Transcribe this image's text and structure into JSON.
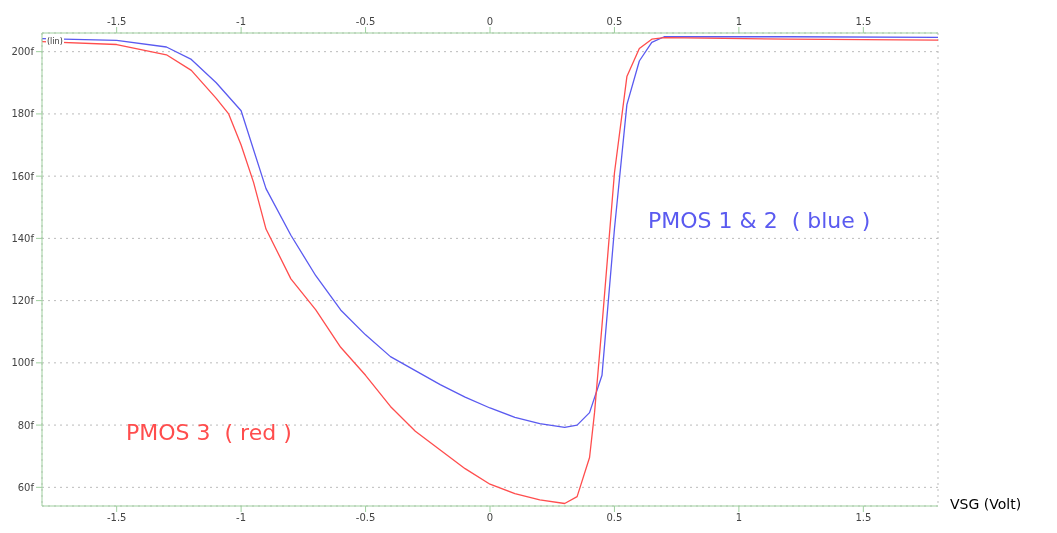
{
  "chart_data": {
    "type": "line",
    "xlabel": "VSG (Volt)",
    "annotations": [
      "(lin)"
    ],
    "xlim": [
      -1.8,
      1.8
    ],
    "xticks": [
      -1.5,
      -1,
      -0.5,
      0,
      0.5,
      1,
      1.5
    ],
    "x2lim": [
      -1.8,
      1.8
    ],
    "x2ticks": [
      -1.5,
      -1,
      -0.5,
      0,
      0.5,
      1,
      1.5
    ],
    "ylim": [
      54,
      206
    ],
    "yticks": [
      {
        "value": 60,
        "label": "60f"
      },
      {
        "value": 80,
        "label": "80f"
      },
      {
        "value": 100,
        "label": "100f"
      },
      {
        "value": 120,
        "label": "120f"
      },
      {
        "value": 140,
        "label": "140f"
      },
      {
        "value": 160,
        "label": "160f"
      },
      {
        "value": 180,
        "label": "180f"
      },
      {
        "value": 200,
        "label": "200f"
      }
    ],
    "grid": true,
    "legend": false,
    "marker": "none",
    "line_style": "solid",
    "series": [
      {
        "name": "PMOS 1 & 2  ( blue )",
        "color": "#5a5af0",
        "x": [
          -1.8,
          -1.5,
          -1.3,
          -1.2,
          -1.1,
          -1.0,
          -0.9,
          -0.8,
          -0.7,
          -0.6,
          -0.5,
          -0.4,
          -0.3,
          -0.2,
          -0.1,
          0,
          0.1,
          0.2,
          0.3,
          0.35,
          0.4,
          0.45,
          0.5,
          0.55,
          0.6,
          0.65,
          0.7,
          1.2,
          1.8
        ],
        "values": [
          204.2,
          203.6,
          201.5,
          197.5,
          190,
          181,
          156,
          141,
          128,
          117,
          109,
          102,
          97.5,
          93,
          89,
          85.5,
          82.5,
          80.5,
          79.3,
          80,
          84,
          96,
          143,
          183,
          197,
          203,
          204.8,
          204.8,
          204.6
        ]
      },
      {
        "name": "PMOS 3  ( red )",
        "color": "#ff4d4d",
        "x": [
          -1.8,
          -1.5,
          -1.3,
          -1.2,
          -1.1,
          -1.05,
          -1.0,
          -0.95,
          -0.9,
          -0.8,
          -0.7,
          -0.6,
          -0.5,
          -0.4,
          -0.3,
          -0.2,
          -0.1,
          0,
          0.1,
          0.2,
          0.3,
          0.35,
          0.4,
          0.42,
          0.45,
          0.5,
          0.55,
          0.6,
          0.65,
          0.7,
          1.2,
          1.8
        ],
        "values": [
          203.2,
          202.3,
          199,
          194,
          185,
          180,
          170,
          158,
          143,
          127,
          117,
          105,
          96,
          86,
          78,
          72,
          66,
          61,
          58,
          56,
          54.8,
          57,
          69.6,
          84,
          112,
          161,
          192,
          201,
          204,
          204.5,
          204,
          203.7
        ]
      }
    ]
  }
}
